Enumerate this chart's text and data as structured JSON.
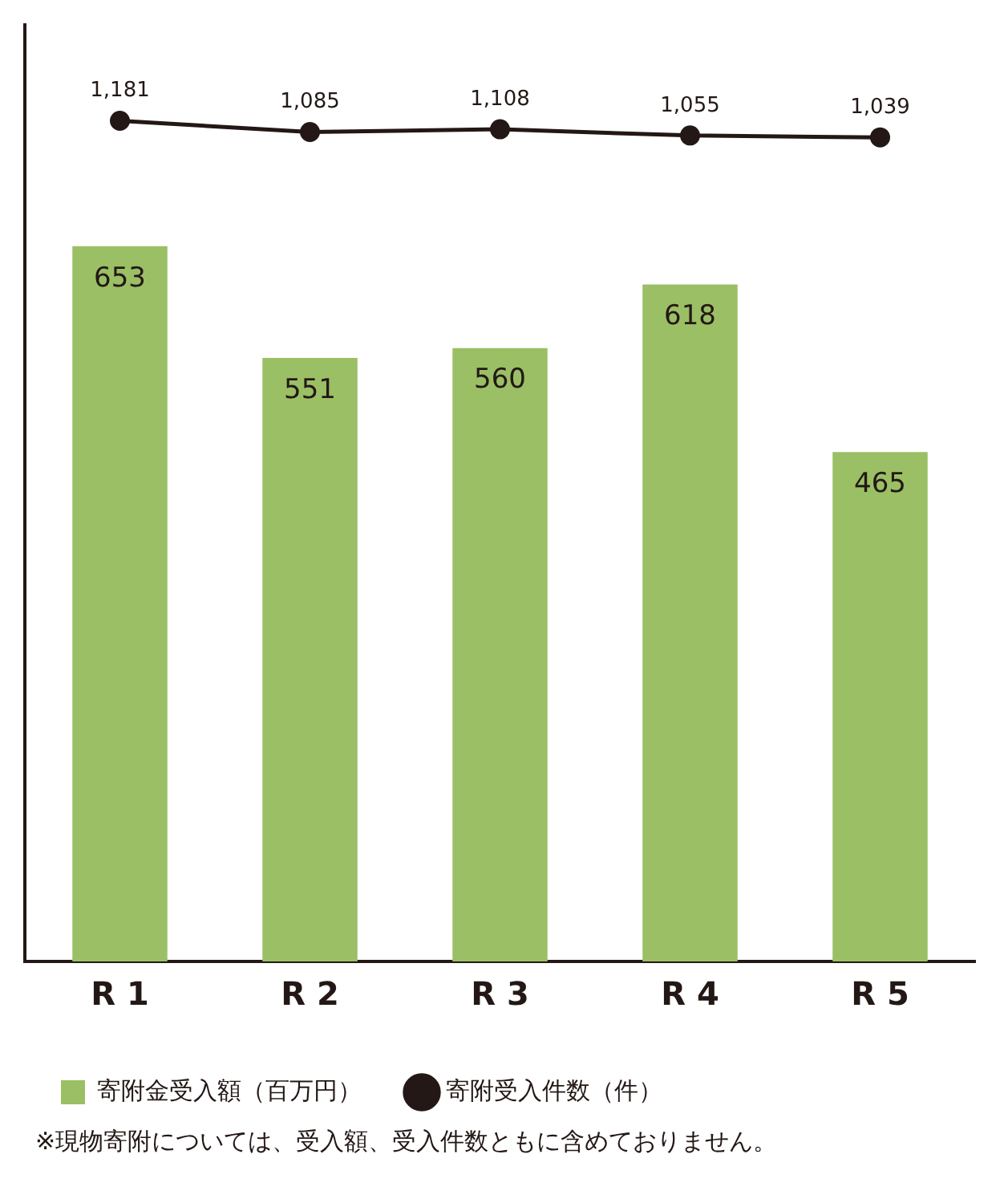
{
  "chart_data": {
    "type": "bar",
    "categories": [
      "R 1",
      "R 2",
      "R 3",
      "R 4",
      "R 5"
    ],
    "series": [
      {
        "name": "寄附金受入額（百万円）",
        "color": "#9bbf65",
        "values": [
          653,
          551,
          560,
          618,
          465
        ]
      },
      {
        "name": "寄附受入件数（件）",
        "type": "line",
        "axis": "y2",
        "color": "#231815",
        "values": [
          1181,
          1085,
          1108,
          1055,
          1039
        ],
        "value_labels": [
          "1,181",
          "1,085",
          "1,108",
          "1,055",
          "1,039"
        ]
      }
    ],
    "ylim": [
      0,
      855
    ],
    "tick_labels": "x",
    "data_labels": true,
    "legend": "bottom",
    "marker": "circle",
    "line_style": "solid",
    "grid": false,
    "annotations": [
      "※現物寄附については、受入額、受入件数ともに含めておりません。"
    ]
  }
}
